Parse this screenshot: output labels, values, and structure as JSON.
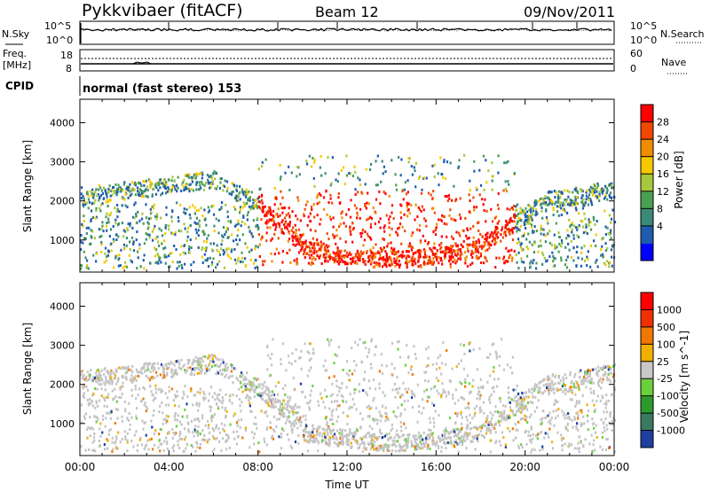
{
  "header": {
    "station": "Pykkvibaer (fitACF)",
    "beam": "Beam 12",
    "date": "09/Nov/2011"
  },
  "top_panels": {
    "nsky_label": "N.Sky",
    "nsearch_label": "N.Search",
    "nsky_ticks": [
      "10^5",
      "10^0"
    ],
    "nsearch_ticks": [
      "10^5",
      "10^0"
    ],
    "freq_label": "Freq.",
    "freq_unit": "[MHz]",
    "freq_ticks": [
      "18",
      "8"
    ],
    "nave_label": "Nave",
    "nave_ticks": [
      "60",
      "0"
    ],
    "cpid_label": "CPID",
    "cpid_text": "normal (fast stereo) 153"
  },
  "chart_data": [
    {
      "type": "heatmap",
      "title": "",
      "xlabel": "Time UT",
      "ylabel": "Slant Range [km]",
      "x_ticks": [
        "00:00",
        "04:00",
        "08:00",
        "12:00",
        "16:00",
        "20:00",
        "00:00"
      ],
      "y_ticks": [
        1000,
        2000,
        3000,
        4000
      ],
      "xlim": [
        0,
        24
      ],
      "ylim": [
        180,
        4600
      ],
      "colorbar": {
        "label": "Power [dB]",
        "ticks": [
          "28",
          "24",
          "20",
          "16",
          "12",
          "8",
          "4"
        ],
        "colors": [
          "#0000ff",
          "#1f5cb0",
          "#3b8a78",
          "#4aa050",
          "#a8c83c",
          "#f5c800",
          "#f08c00",
          "#f04800",
          "#ff0000"
        ]
      }
    },
    {
      "type": "heatmap",
      "title": "",
      "xlabel": "Time UT",
      "ylabel": "Slant Range [km]",
      "x_ticks": [
        "00:00",
        "04:00",
        "08:00",
        "12:00",
        "16:00",
        "20:00",
        "00:00"
      ],
      "y_ticks": [
        1000,
        2000,
        3000,
        4000
      ],
      "xlim": [
        0,
        24
      ],
      "ylim": [
        180,
        4600
      ],
      "colorbar": {
        "label": "Velocity [m s^-1]",
        "ticks": [
          "1000",
          "500",
          "100",
          "25",
          "-25",
          "-100",
          "-500",
          "-1000"
        ],
        "colors": [
          "#1c3fa0",
          "#3a7a60",
          "#2e9a2e",
          "#6cd03c",
          "#c8c8c8",
          "#f0b000",
          "#f07800",
          "#f03000",
          "#ff0000"
        ]
      }
    }
  ]
}
